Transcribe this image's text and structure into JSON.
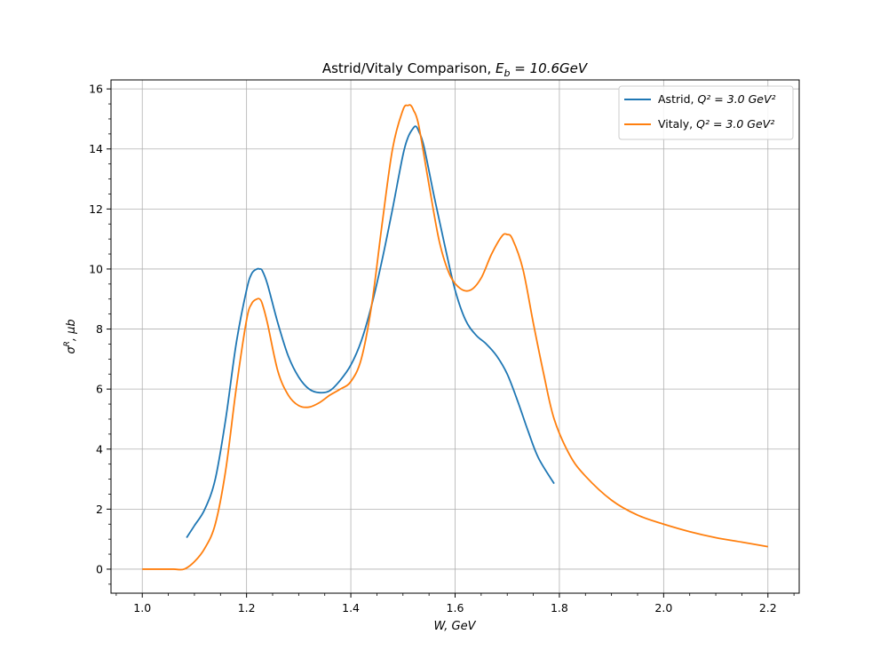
{
  "chart_data": {
    "type": "line",
    "title_main": "Astrid/Vitaly Comparison, ",
    "title_math": "E",
    "title_sub": "b",
    "title_rest": " = 10.6GeV",
    "xlabel": "W, GeV",
    "ylabel_main": "σ",
    "ylabel_sup": "R",
    "ylabel_rest": ", μb",
    "xlim": [
      0.94,
      2.26
    ],
    "ylim": [
      -0.8,
      16.3
    ],
    "xticks": [
      1.0,
      1.2,
      1.4,
      1.6,
      1.8,
      2.0,
      2.2
    ],
    "xtick_labels": [
      "1.0",
      "1.2",
      "1.4",
      "1.6",
      "1.8",
      "2.0",
      "2.2"
    ],
    "yticks": [
      0,
      2,
      4,
      6,
      8,
      10,
      12,
      14,
      16
    ],
    "ytick_labels": [
      "0",
      "2",
      "4",
      "6",
      "8",
      "10",
      "12",
      "14",
      "16"
    ],
    "grid": true,
    "legend_position": "top-right",
    "series": [
      {
        "name_main": "Astrid, ",
        "name_math": "Q² = 3.0 GeV²",
        "color": "#1f77b4",
        "x": [
          1.085,
          1.1,
          1.12,
          1.14,
          1.16,
          1.18,
          1.2,
          1.21,
          1.22,
          1.225,
          1.23,
          1.24,
          1.26,
          1.28,
          1.3,
          1.32,
          1.34,
          1.36,
          1.38,
          1.4,
          1.42,
          1.44,
          1.46,
          1.48,
          1.5,
          1.51,
          1.52,
          1.525,
          1.53,
          1.54,
          1.56,
          1.58,
          1.6,
          1.62,
          1.64,
          1.66,
          1.68,
          1.7,
          1.72,
          1.74,
          1.76,
          1.79
        ],
        "y": [
          1.05,
          1.45,
          2.0,
          3.0,
          5.0,
          7.5,
          9.3,
          9.85,
          10.0,
          10.0,
          9.95,
          9.5,
          8.2,
          7.1,
          6.4,
          6.0,
          5.88,
          5.95,
          6.3,
          6.8,
          7.6,
          8.8,
          10.3,
          12.0,
          13.8,
          14.4,
          14.7,
          14.75,
          14.6,
          14.1,
          12.4,
          10.8,
          9.3,
          8.3,
          7.8,
          7.5,
          7.1,
          6.5,
          5.6,
          4.6,
          3.7,
          2.85
        ]
      },
      {
        "name_main": "Vitaly, ",
        "name_math": "Q² = 3.0 GeV²",
        "color": "#ff7f0e",
        "x": [
          1.0,
          1.03,
          1.06,
          1.08,
          1.1,
          1.12,
          1.14,
          1.16,
          1.18,
          1.2,
          1.21,
          1.22,
          1.225,
          1.23,
          1.24,
          1.26,
          1.28,
          1.3,
          1.32,
          1.34,
          1.36,
          1.38,
          1.4,
          1.42,
          1.44,
          1.46,
          1.48,
          1.5,
          1.51,
          1.515,
          1.52,
          1.53,
          1.55,
          1.57,
          1.59,
          1.61,
          1.63,
          1.65,
          1.67,
          1.69,
          1.7,
          1.71,
          1.73,
          1.75,
          1.77,
          1.79,
          1.82,
          1.85,
          1.9,
          1.95,
          2.0,
          2.05,
          2.1,
          2.15,
          2.2
        ],
        "y": [
          0.0,
          0.0,
          0.0,
          0.0,
          0.25,
          0.7,
          1.5,
          3.3,
          6.0,
          8.3,
          8.85,
          9.0,
          9.0,
          8.85,
          8.2,
          6.6,
          5.8,
          5.45,
          5.4,
          5.55,
          5.8,
          6.0,
          6.25,
          7.0,
          8.8,
          11.5,
          14.0,
          15.3,
          15.45,
          15.45,
          15.3,
          14.8,
          12.8,
          10.9,
          9.8,
          9.35,
          9.3,
          9.7,
          10.5,
          11.1,
          11.15,
          11.0,
          10.0,
          8.2,
          6.5,
          5.0,
          3.8,
          3.1,
          2.3,
          1.8,
          1.5,
          1.25,
          1.05,
          0.9,
          0.75
        ]
      }
    ]
  }
}
